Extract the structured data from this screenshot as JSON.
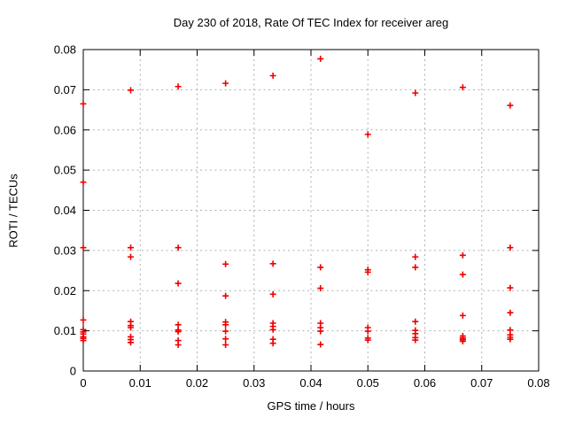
{
  "chart_data": {
    "type": "scatter",
    "title": "Day 230 of 2018, Rate Of TEC Index for receiver areg",
    "xlabel": "GPS time / hours",
    "ylabel": "ROTI / TECUs",
    "xlim": [
      0,
      0.08
    ],
    "ylim": [
      0,
      0.08
    ],
    "xticks": {
      "values": [
        0,
        0.01,
        0.02,
        0.03,
        0.04,
        0.05,
        0.06,
        0.07,
        0.08
      ],
      "labels": [
        "0",
        "0.01",
        "0.02",
        "0.03",
        "0.04",
        "0.05",
        "0.06",
        "0.07",
        "0.08"
      ]
    },
    "yticks": {
      "values": [
        0,
        0.01,
        0.02,
        0.03,
        0.04,
        0.05,
        0.06,
        0.07,
        0.08
      ],
      "labels": [
        "0",
        "0.01",
        "0.02",
        "0.03",
        "0.04",
        "0.05",
        "0.06",
        "0.07",
        "0.08"
      ]
    },
    "grid": true,
    "legend": "none",
    "marker": {
      "shape": "plus",
      "color": "#ee0000"
    },
    "colors": {
      "grid": "#b0b0b0",
      "axis": "#000000",
      "background": "#ffffff"
    },
    "series": [
      {
        "name": "ROTI",
        "clusters": [
          {
            "x": 0.0,
            "y": [
              0.0665,
              0.047,
              0.0307,
              0.0127,
              0.0103,
              0.0097,
              0.0092,
              0.0085,
              0.0081,
              0.0076
            ]
          },
          {
            "x": 0.00833,
            "y": [
              0.0699,
              0.0307,
              0.0284,
              0.0123,
              0.0113,
              0.0108,
              0.0085,
              0.0078,
              0.0071
            ]
          },
          {
            "x": 0.01667,
            "y": [
              0.0708,
              0.0307,
              0.0218,
              0.0115,
              0.0102,
              0.0098,
              0.0076,
              0.0065
            ]
          },
          {
            "x": 0.025,
            "y": [
              0.0716,
              0.0266,
              0.0187,
              0.0122,
              0.0115,
              0.0099,
              0.008,
              0.0065
            ]
          },
          {
            "x": 0.03333,
            "y": [
              0.0735,
              0.0267,
              0.0191,
              0.0119,
              0.0111,
              0.0103,
              0.0079,
              0.0069
            ]
          },
          {
            "x": 0.04167,
            "y": [
              0.0777,
              0.0258,
              0.0206,
              0.0119,
              0.0108,
              0.0099,
              0.0066
            ]
          },
          {
            "x": 0.05,
            "y": [
              0.0589,
              0.0252,
              0.0246,
              0.0108,
              0.0099,
              0.0082,
              0.0077
            ]
          },
          {
            "x": 0.05833,
            "y": [
              0.0692,
              0.0284,
              0.0258,
              0.0123,
              0.0101,
              0.0093,
              0.0083,
              0.0077
            ]
          },
          {
            "x": 0.06667,
            "y": [
              0.0706,
              0.0288,
              0.024,
              0.0138,
              0.0087,
              0.0082,
              0.0078,
              0.0074
            ]
          },
          {
            "x": 0.075,
            "y": [
              0.0661,
              0.0307,
              0.0207,
              0.0145,
              0.0102,
              0.009,
              0.0084,
              0.0079
            ]
          }
        ]
      }
    ]
  }
}
